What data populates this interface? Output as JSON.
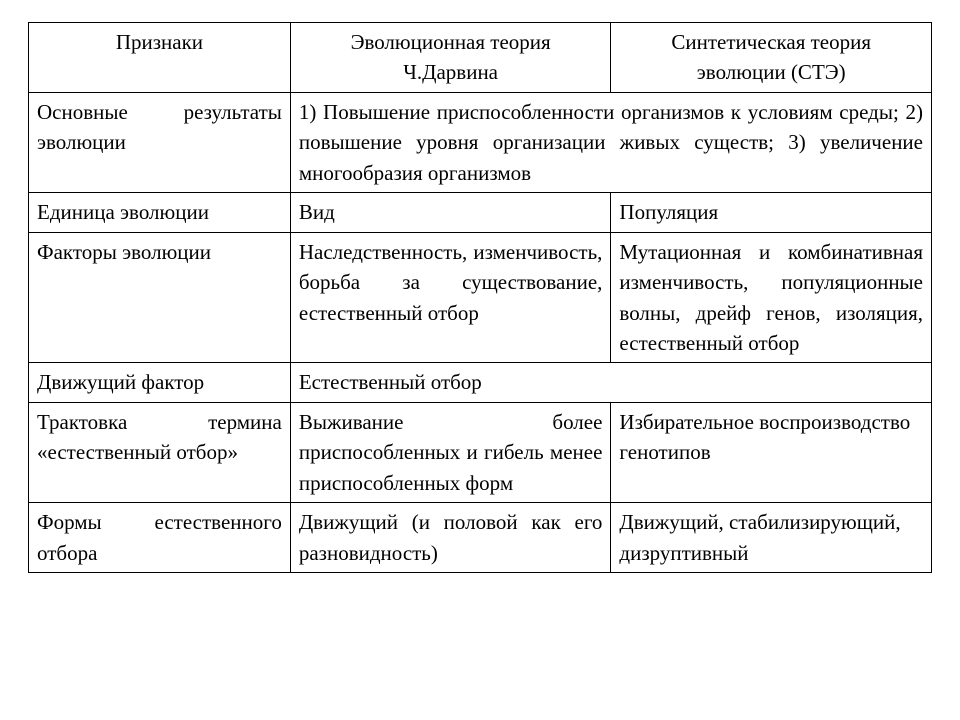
{
  "table": {
    "type": "table",
    "background_color": "#ffffff",
    "border_color": "#000000",
    "text_color": "#000000",
    "font_family": "Times New Roman",
    "font_size_pt": 16,
    "column_widths_pct": [
      29,
      35.5,
      35.5
    ],
    "headers": {
      "col1": "Признаки",
      "col2_line1": "Эволюционная теория",
      "col2_line2": "Ч.Дарвина",
      "col3_line1": "Синтетическая теория",
      "col3_line2": "эволюции (СТЭ)"
    },
    "rows": [
      {
        "label": "Основные результаты эволюции",
        "merged": true,
        "merged_text": "1) Повышение приспособленности организмов к условиям среды; 2) повышение уровня организации живых существ; 3) увеличение многообразия организмов"
      },
      {
        "label": "Единица эволюции",
        "darwin": "Вид",
        "ste": "Популяция"
      },
      {
        "label": "Факторы эволюции",
        "darwin": "Наследственность, изменчивость, борьба за существование, естественный отбор",
        "ste": "Мутационная и комбинативная изменчивость, популяционные волны, дрейф генов, изоляция, естественный отбор"
      },
      {
        "label": "Движущий фактор",
        "merged": true,
        "merged_text": "Естественный отбор"
      },
      {
        "label": "Трактовка термина «естественный отбор»",
        "darwin": "Выживание более приспособленных и гибель менее приспособленных форм",
        "ste": "Избирательное воспроизводство генотипов"
      },
      {
        "label": "Формы естественного отбора",
        "darwin": "Движущий (и половой как его разновидность)",
        "ste": "Движущий, стабилизирующий, дизруптивный"
      }
    ]
  }
}
